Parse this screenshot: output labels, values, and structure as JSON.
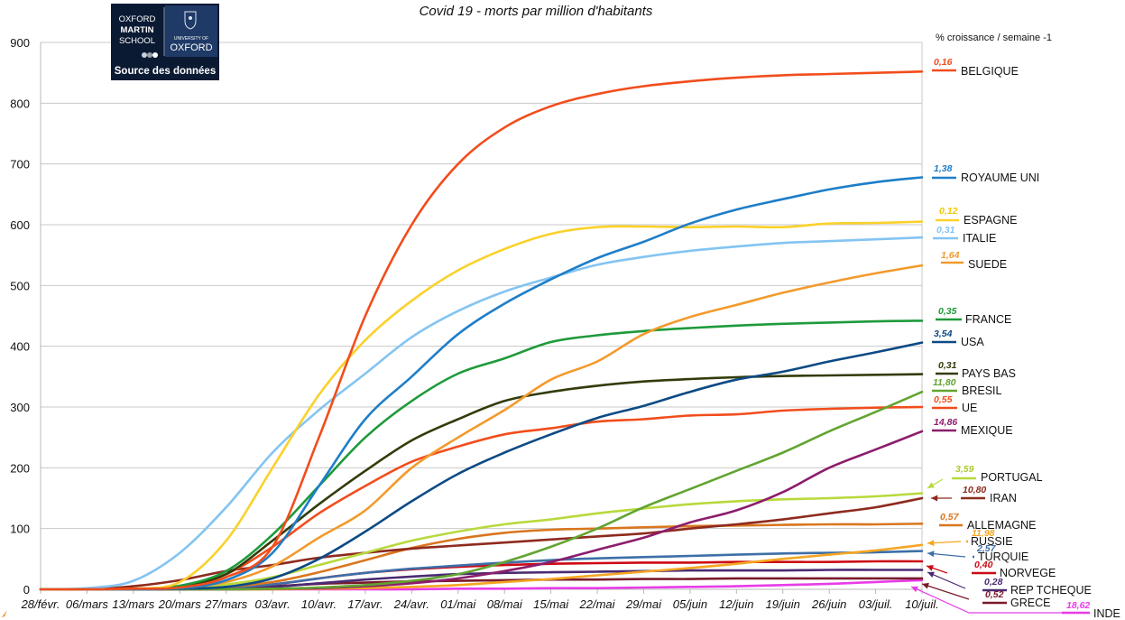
{
  "page": {
    "title": "Covid 19 - morts par million d'habitants",
    "legend_header": "% croissance / semaine -1"
  },
  "logo": {
    "left_lines": [
      "OXFORD",
      "MARTIN",
      "SCHOOL"
    ],
    "right_small": "UNIVERSITY OF",
    "right_big": "OXFORD",
    "source": "Source des données"
  },
  "chart_data": {
    "type": "line",
    "title": "Covid 19 - morts par million d'habitants",
    "xlabel": "",
    "ylabel": "",
    "ylim": [
      0,
      900
    ],
    "yticks": [
      0,
      100,
      200,
      300,
      400,
      500,
      600,
      700,
      800,
      900
    ],
    "grid": true,
    "legend": "right",
    "x": [
      "28/févr.",
      "06/mars",
      "13/mars",
      "20/mars",
      "27/mars",
      "03/avr.",
      "10/avr.",
      "17/avr.",
      "24/avr.",
      "01/mai",
      "08/mai",
      "15/mai",
      "22/mai",
      "29/mai",
      "05/juin",
      "12/juin",
      "19/juin",
      "26/juin",
      "03/juil.",
      "10/juil."
    ],
    "series": [
      {
        "name": "BELGIQUE",
        "pct": "0,16",
        "color": "#f24d1c",
        "labelColor": "#f24d1c",
        "values": [
          0,
          0,
          1,
          3,
          20,
          70,
          250,
          450,
          600,
          700,
          760,
          795,
          815,
          828,
          836,
          842,
          846,
          848,
          850,
          852
        ]
      },
      {
        "name": "ROYAUME UNI",
        "pct": "1,38",
        "color": "#1e7ec8",
        "labelColor": "#1e7ec8",
        "values": [
          0,
          0,
          0,
          2,
          15,
          60,
          170,
          280,
          350,
          420,
          470,
          510,
          545,
          572,
          602,
          625,
          642,
          658,
          670,
          678
        ]
      },
      {
        "name": "ESPAGNE",
        "pct": "0,12",
        "color": "#fbd12a",
        "labelColor": "#f5c800",
        "values": [
          0,
          0,
          1,
          12,
          80,
          200,
          320,
          410,
          475,
          525,
          560,
          585,
          596,
          597,
          596,
          597,
          596,
          602,
          603,
          605
        ]
      },
      {
        "name": "ITALIE",
        "pct": "0,31",
        "color": "#84c4f2",
        "labelColor": "#84c4f2",
        "values": [
          0,
          2,
          14,
          60,
          135,
          225,
          295,
          355,
          415,
          458,
          490,
          513,
          534,
          547,
          557,
          564,
          570,
          573,
          576,
          579
        ]
      },
      {
        "name": "SUEDE",
        "pct": "1,64",
        "color": "#f39a2c",
        "labelColor": "#f39a2c",
        "values": [
          0,
          0,
          0,
          2,
          12,
          38,
          85,
          130,
          200,
          250,
          295,
          345,
          375,
          420,
          448,
          468,
          488,
          505,
          520,
          533
        ]
      },
      {
        "name": "FRANCE",
        "pct": "0,35",
        "color": "#1e9a3a",
        "labelColor": "#1e9a3a",
        "values": [
          0,
          0,
          1,
          6,
          30,
          90,
          170,
          250,
          310,
          355,
          380,
          407,
          418,
          425,
          430,
          434,
          437,
          439,
          441,
          442
        ]
      },
      {
        "name": "USA",
        "pct": "3,54",
        "color": "#0c4a84",
        "labelColor": "#0c4a84",
        "values": [
          0,
          0,
          0,
          1,
          4,
          18,
          50,
          95,
          145,
          190,
          225,
          255,
          282,
          302,
          325,
          345,
          358,
          375,
          390,
          406
        ]
      },
      {
        "name": "PAYS BAS",
        "pct": "0,31",
        "color": "#323c0a",
        "labelColor": "#323c0a",
        "values": [
          0,
          0,
          0,
          4,
          25,
          80,
          140,
          195,
          245,
          280,
          310,
          325,
          335,
          342,
          346,
          349,
          351,
          352,
          353,
          354
        ]
      },
      {
        "name": "BRESIL",
        "pct": "11,80",
        "color": "#62a431",
        "labelColor": "#62a431",
        "values": [
          0,
          0,
          0,
          0,
          0,
          1,
          3,
          7,
          14,
          25,
          45,
          70,
          100,
          135,
          165,
          195,
          225,
          260,
          292,
          325
        ]
      },
      {
        "name": "UE",
        "pct": "0,55",
        "color": "#f24d1c",
        "labelColor": "#f24d1c",
        "values": [
          0,
          0,
          1,
          5,
          25,
          70,
          125,
          170,
          210,
          235,
          255,
          265,
          276,
          280,
          286,
          288,
          294,
          297,
          299,
          300
        ]
      },
      {
        "name": "MEXIQUE",
        "pct": "14,86",
        "color": "#8c1d6c",
        "labelColor": "#8c1d6c",
        "values": [
          0,
          0,
          0,
          0,
          0,
          1,
          2,
          5,
          10,
          18,
          30,
          45,
          65,
          85,
          110,
          130,
          160,
          200,
          230,
          260
        ]
      },
      {
        "name": "PORTUGAL",
        "pct": "3,59",
        "color": "#b8d93c",
        "labelColor": "#a8cc28",
        "values": [
          0,
          0,
          0,
          2,
          8,
          20,
          40,
          60,
          80,
          95,
          107,
          115,
          125,
          133,
          140,
          145,
          148,
          150,
          153,
          158
        ]
      },
      {
        "name": "IRAN",
        "pct": "10,80",
        "color": "#8e2a1e",
        "labelColor": "#8e2a1e",
        "values": [
          0,
          0,
          5,
          15,
          30,
          40,
          52,
          60,
          67,
          72,
          77,
          82,
          87,
          92,
          100,
          107,
          115,
          125,
          135,
          150
        ]
      },
      {
        "name": "ALLEMAGNE",
        "pct": "0,57",
        "color": "#d9761e",
        "labelColor": "#d9761e",
        "values": [
          0,
          0,
          0,
          1,
          4,
          12,
          28,
          48,
          68,
          83,
          93,
          98,
          100,
          102,
          104,
          105,
          106,
          107,
          107,
          108
        ]
      },
      {
        "name": "RUSSIE",
        "pct": "11,98",
        "color": "#f5a623",
        "labelColor": "#f5a623",
        "values": [
          0,
          0,
          0,
          0,
          0,
          0,
          1,
          2,
          4,
          7,
          12,
          17,
          23,
          29,
          35,
          42,
          50,
          57,
          64,
          73
        ]
      },
      {
        "name": "TURQUIE",
        "pct": "2,57",
        "color": "#3e6fa8",
        "labelColor": "#3e6fa8",
        "values": [
          0,
          0,
          0,
          1,
          3,
          8,
          18,
          27,
          34,
          39,
          44,
          48,
          51,
          53,
          55,
          57,
          59,
          60,
          61,
          63
        ]
      },
      {
        "name": "NORVEGE",
        "pct": "0,40",
        "color": "#cc0a14",
        "labelColor": "#cc0a14",
        "values": [
          0,
          0,
          0,
          1,
          3,
          8,
          18,
          27,
          33,
          37,
          40,
          42,
          43,
          44,
          44,
          45,
          45,
          45,
          46,
          46
        ]
      },
      {
        "name": "REP TCHEQUE",
        "pct": "0,28",
        "color": "#4a2a72",
        "labelColor": "#4a2a72",
        "values": [
          0,
          0,
          0,
          0,
          1,
          4,
          10,
          16,
          21,
          25,
          27,
          28,
          29,
          30,
          31,
          31,
          31,
          32,
          32,
          32
        ]
      },
      {
        "name": "GRECE",
        "pct": "0,52",
        "color": "#7a1a2a",
        "labelColor": "#7a1a2a",
        "values": [
          0,
          0,
          0,
          1,
          2,
          5,
          9,
          11,
          13,
          14,
          15,
          16,
          16,
          17,
          17,
          18,
          18,
          18,
          18,
          18
        ]
      },
      {
        "name": "INDE",
        "pct": "18,62",
        "color": "#e83ce8",
        "labelColor": "#e83ce8",
        "values": [
          0,
          0,
          0,
          0,
          0,
          0,
          0,
          0,
          0,
          1,
          1,
          2,
          2,
          3,
          4,
          5,
          7,
          9,
          12,
          15
        ]
      }
    ]
  }
}
